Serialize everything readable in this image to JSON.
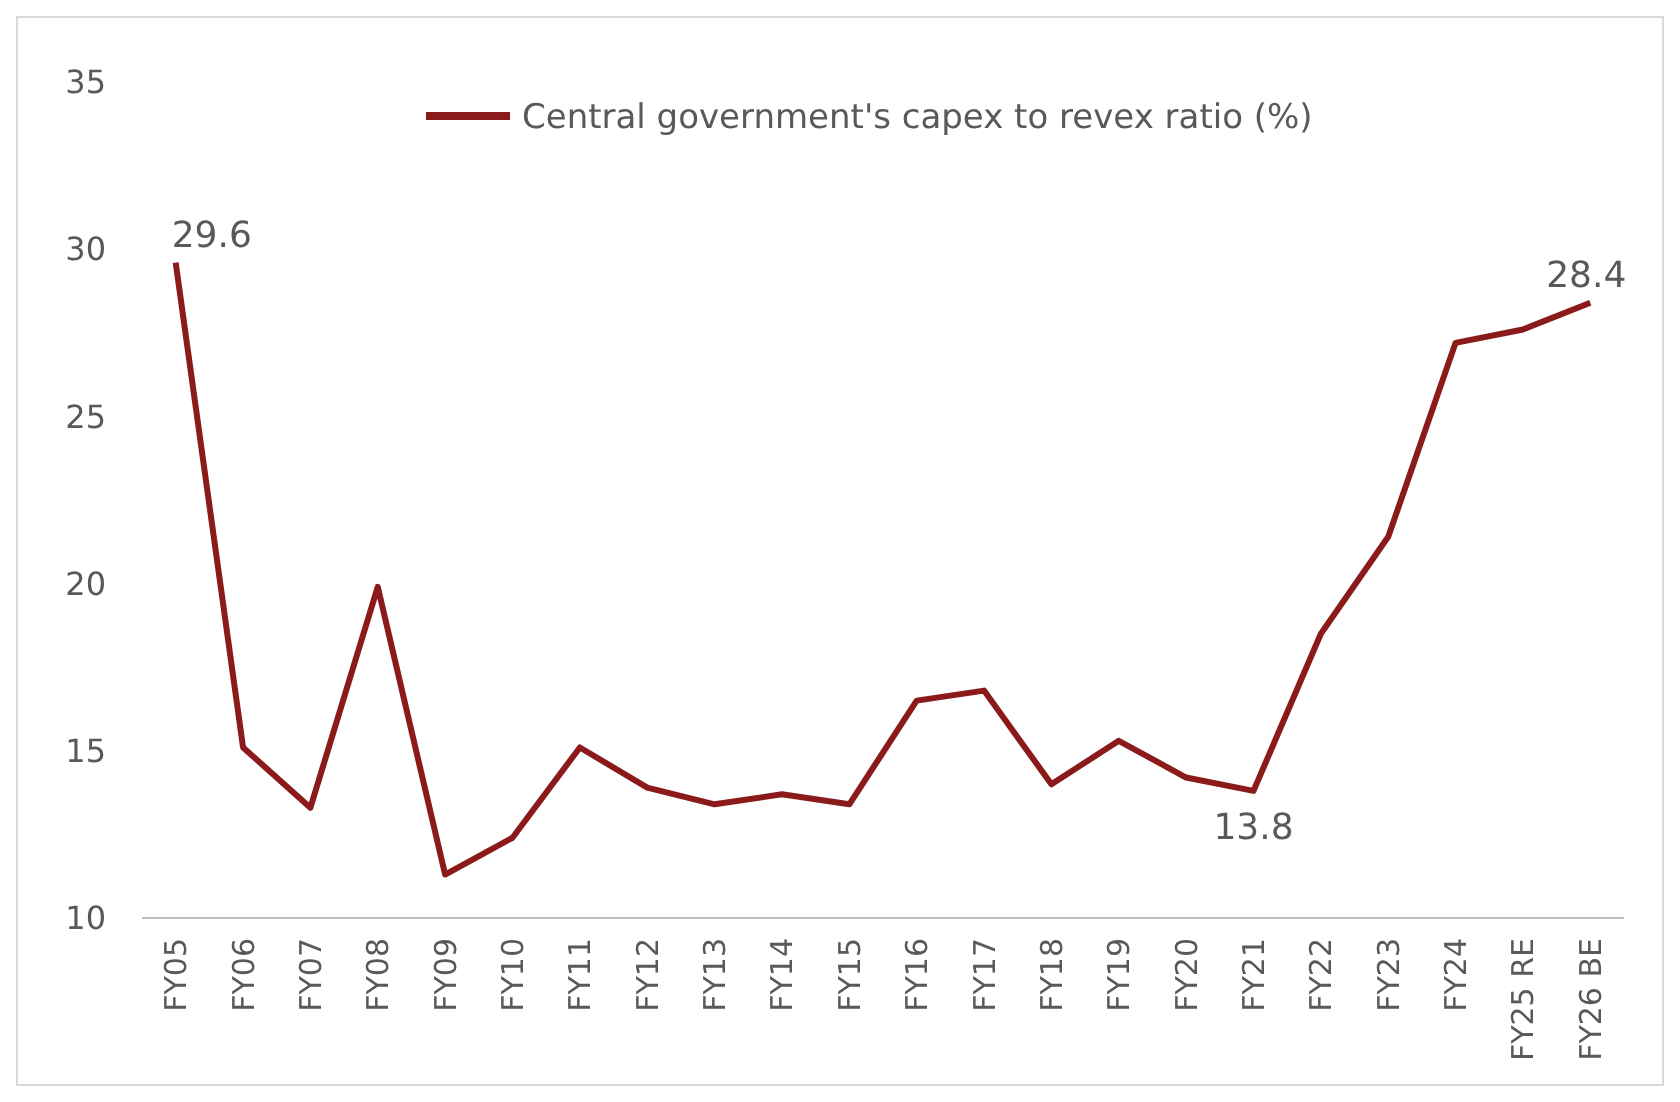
{
  "chart_data": {
    "type": "line",
    "categories": [
      "FY05",
      "FY06",
      "FY07",
      "FY08",
      "FY09",
      "FY10",
      "FY11",
      "FY12",
      "FY13",
      "FY14",
      "FY15",
      "FY16",
      "FY17",
      "FY18",
      "FY19",
      "FY20",
      "FY21",
      "FY22",
      "FY23",
      "FY24",
      "FY25 RE",
      "FY26 BE"
    ],
    "series": [
      {
        "name": "Central government's capex to revex ratio (%)",
        "color": "#8b1a1a",
        "values": [
          29.6,
          15.1,
          13.3,
          19.9,
          11.3,
          12.4,
          15.1,
          13.9,
          13.4,
          13.7,
          13.4,
          16.5,
          16.8,
          14.0,
          15.3,
          14.2,
          13.8,
          18.5,
          21.4,
          27.2,
          27.6,
          28.4
        ]
      }
    ],
    "ylim": [
      10,
      35
    ],
    "yticks": [
      10,
      15,
      20,
      25,
      30,
      35
    ],
    "grid": false,
    "legend": "top",
    "marker": "none",
    "line_style": "solid",
    "annotations": [
      {
        "text": "29.6",
        "x": "FY05",
        "y": 29.6
      },
      {
        "text": "13.8",
        "x": "FY21",
        "y": 13.8
      },
      {
        "text": "28.4",
        "x": "FY26 BE",
        "y": 28.4
      }
    ]
  }
}
